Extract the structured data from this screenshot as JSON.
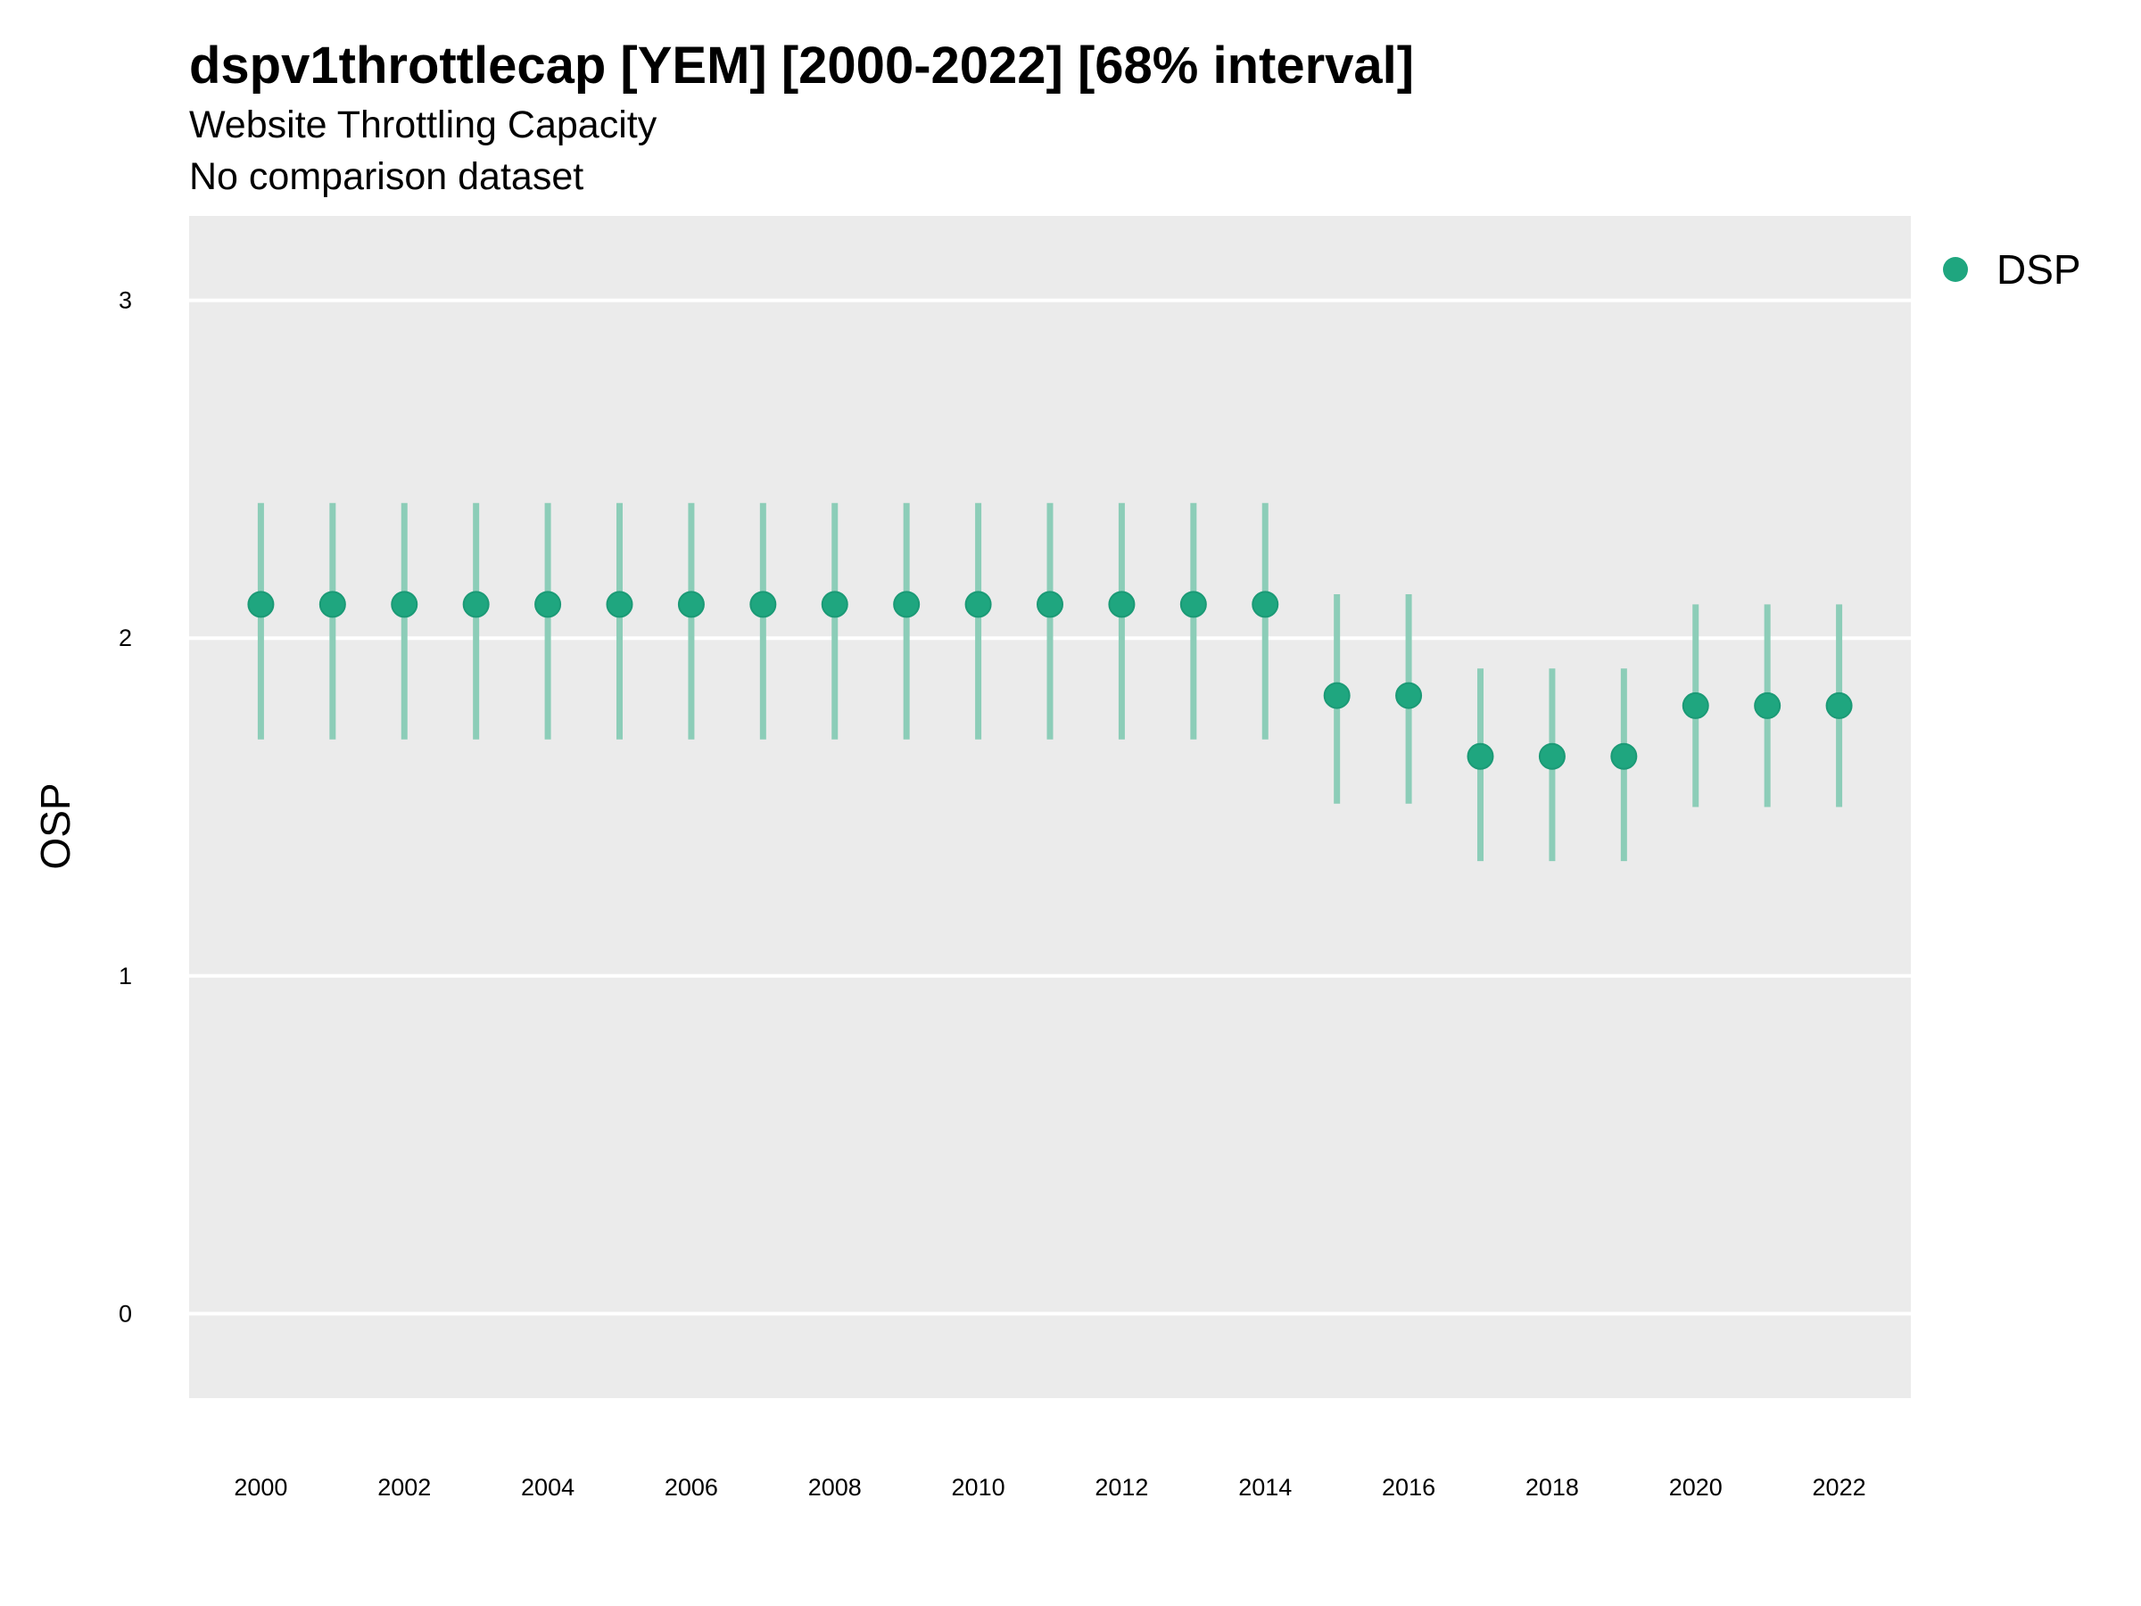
{
  "header": {
    "title": "dspv1throttlecap [YEM] [2000-2022] [68% interval]",
    "subtitle": "Website Throttling Capacity",
    "subtitle2": "No comparison dataset"
  },
  "chart_data": {
    "type": "scatter",
    "title": "dspv1throttlecap [YEM] [2000-2022] [68% interval]",
    "subtitle": "Website Throttling Capacity",
    "xlabel": "",
    "ylabel": "OSP",
    "ylim": [
      -0.25,
      3.25
    ],
    "xlim": [
      1999,
      2023
    ],
    "y_ticks": [
      0,
      1,
      2,
      3
    ],
    "x_ticks": [
      2000,
      2002,
      2004,
      2006,
      2008,
      2010,
      2012,
      2014,
      2016,
      2018,
      2020,
      2022
    ],
    "grid": "horizontal major lines",
    "legend_position": "right",
    "series": [
      {
        "name": "DSP",
        "color": "#1fa67f",
        "interval_color": "#8ccdb8",
        "x": [
          2000,
          2001,
          2002,
          2003,
          2004,
          2005,
          2006,
          2007,
          2008,
          2009,
          2010,
          2011,
          2012,
          2013,
          2014,
          2015,
          2016,
          2017,
          2018,
          2019,
          2020,
          2021,
          2022
        ],
        "y": [
          2.1,
          2.1,
          2.1,
          2.1,
          2.1,
          2.1,
          2.1,
          2.1,
          2.1,
          2.1,
          2.1,
          2.1,
          2.1,
          2.1,
          2.1,
          1.83,
          1.83,
          1.65,
          1.65,
          1.65,
          1.8,
          1.8,
          1.8
        ],
        "lower": [
          1.7,
          1.7,
          1.7,
          1.7,
          1.7,
          1.7,
          1.7,
          1.7,
          1.7,
          1.7,
          1.7,
          1.7,
          1.7,
          1.7,
          1.7,
          1.51,
          1.51,
          1.34,
          1.34,
          1.34,
          1.5,
          1.5,
          1.5
        ],
        "upper": [
          2.4,
          2.4,
          2.4,
          2.4,
          2.4,
          2.4,
          2.4,
          2.4,
          2.4,
          2.4,
          2.4,
          2.4,
          2.4,
          2.4,
          2.4,
          2.13,
          2.13,
          1.91,
          1.91,
          1.91,
          2.1,
          2.1,
          2.1
        ]
      }
    ]
  }
}
